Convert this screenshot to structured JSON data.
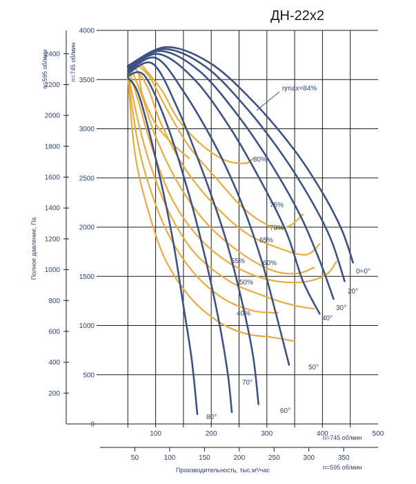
{
  "chart_data": {
    "type": "line",
    "title": "ДН-22х2",
    "left_labels": {
      "n595": "n=595 об/мин",
      "n745": "n=745 об/мин"
    },
    "ylabel": "Полное давление,  Па",
    "xlabel": "Производительность, тыс.м³/час",
    "xlabel_suffix_745": "n=745 об/мин",
    "xlabel_suffix_595": "n=595 об/мин",
    "ylim_745": [
      0,
      4000
    ],
    "xlim_745": [
      0,
      500
    ],
    "y_ticks_745": [
      "0",
      "500",
      "1000",
      "1500",
      "2000",
      "2500",
      "3000",
      "3500",
      "4000"
    ],
    "y_ticks_595": [
      "200",
      "400",
      "600",
      "800",
      "1000",
      "1200",
      "1400",
      "1600",
      "1800",
      "2000",
      "2200",
      "2400"
    ],
    "x_ticks_745": [
      "100",
      "200",
      "300",
      "400",
      "500"
    ],
    "x_ticks_595": [
      "50",
      "100",
      "150",
      "200",
      "250",
      "300",
      "350"
    ],
    "colors": {
      "pressure": "#3c5285",
      "efficiency": "#e8ac3c",
      "grid": "#1a1a1a",
      "text": "#2b3f74"
    },
    "pressure_curves": [
      {
        "name": "0=0°",
        "points": [
          [
            50,
            3640
          ],
          [
            120,
            3830
          ],
          [
            200,
            3660
          ],
          [
            280,
            3250
          ],
          [
            350,
            2780
          ],
          [
            400,
            2350
          ],
          [
            435,
            1970
          ],
          [
            455,
            1640
          ]
        ]
      },
      {
        "name": "20°",
        "points": [
          [
            50,
            3630
          ],
          [
            115,
            3810
          ],
          [
            190,
            3630
          ],
          [
            265,
            3200
          ],
          [
            330,
            2720
          ],
          [
            380,
            2270
          ],
          [
            415,
            1880
          ],
          [
            440,
            1450
          ]
        ]
      },
      {
        "name": "30°",
        "points": [
          [
            50,
            3620
          ],
          [
            110,
            3790
          ],
          [
            180,
            3580
          ],
          [
            250,
            3120
          ],
          [
            310,
            2620
          ],
          [
            360,
            2120
          ],
          [
            395,
            1660
          ],
          [
            420,
            1270
          ]
        ]
      },
      {
        "name": "40°",
        "points": [
          [
            50,
            3600
          ],
          [
            105,
            3760
          ],
          [
            170,
            3500
          ],
          [
            235,
            3000
          ],
          [
            290,
            2460
          ],
          [
            335,
            1950
          ],
          [
            365,
            1450
          ],
          [
            395,
            1120
          ]
        ]
      },
      {
        "name": "50°",
        "points": [
          [
            50,
            3580
          ],
          [
            100,
            3720
          ],
          [
            150,
            3380
          ],
          [
            210,
            2800
          ],
          [
            255,
            2240
          ],
          [
            290,
            1670
          ],
          [
            315,
            1150
          ],
          [
            340,
            600
          ]
        ]
      },
      {
        "name": "60°",
        "points": [
          [
            50,
            3560
          ],
          [
            95,
            3660
          ],
          [
            140,
            3200
          ],
          [
            185,
            2560
          ],
          [
            225,
            1900
          ],
          [
            255,
            1250
          ],
          [
            275,
            700
          ],
          [
            285,
            200
          ]
        ]
      },
      {
        "name": "70°",
        "points": [
          [
            50,
            3540
          ],
          [
            80,
            3540
          ],
          [
            120,
            3050
          ],
          [
            160,
            2330
          ],
          [
            190,
            1670
          ],
          [
            215,
            1010
          ],
          [
            230,
            500
          ],
          [
            237,
            120
          ]
        ]
      },
      {
        "name": "80°",
        "points": [
          [
            50,
            3520
          ],
          [
            70,
            3340
          ],
          [
            100,
            2700
          ],
          [
            130,
            1900
          ],
          [
            150,
            1200
          ],
          [
            165,
            650
          ],
          [
            175,
            100
          ]
        ]
      }
    ],
    "efficiency_curves": [
      {
        "name": "84%",
        "points": [
          [
            50,
            3520
          ],
          [
            68,
            3570
          ],
          [
            76,
            3350
          ],
          [
            100,
            3050
          ],
          [
            130,
            2850
          ],
          [
            160,
            2700
          ]
        ]
      },
      {
        "name": "80%",
        "points": [
          [
            70,
            3680
          ],
          [
            110,
            3400
          ],
          [
            140,
            3100
          ],
          [
            180,
            2850
          ],
          [
            225,
            2680
          ],
          [
            262,
            2650
          ],
          [
            275,
            2700
          ]
        ]
      },
      {
        "name": "75%",
        "points": [
          [
            65,
            3660
          ],
          [
            90,
            3520
          ],
          [
            120,
            3200
          ],
          [
            160,
            2820
          ],
          [
            210,
            2490
          ],
          [
            260,
            2180
          ],
          [
            310,
            2000
          ],
          [
            340,
            2010
          ],
          [
            365,
            2130
          ]
        ]
      },
      {
        "name": "70%",
        "points": [
          [
            60,
            3640
          ],
          [
            85,
            3430
          ],
          [
            110,
            3050
          ],
          [
            150,
            2620
          ],
          [
            200,
            2260
          ],
          [
            260,
            1950
          ],
          [
            320,
            1790
          ],
          [
            370,
            1720
          ],
          [
            395,
            1830
          ]
        ]
      },
      {
        "name": "65%",
        "points": [
          [
            55,
            3620
          ],
          [
            75,
            3340
          ],
          [
            100,
            2920
          ],
          [
            140,
            2450
          ],
          [
            190,
            2050
          ],
          [
            250,
            1750
          ],
          [
            310,
            1560
          ],
          [
            355,
            1530
          ],
          [
            385,
            1590
          ]
        ]
      },
      {
        "name": "60%",
        "points": [
          [
            52,
            3600
          ],
          [
            72,
            3220
          ],
          [
            95,
            2780
          ],
          [
            130,
            2280
          ],
          [
            180,
            1880
          ],
          [
            240,
            1610
          ],
          [
            300,
            1470
          ],
          [
            360,
            1440
          ],
          [
            405,
            1510
          ],
          [
            425,
            1650
          ]
        ]
      },
      {
        "name": "55%",
        "points": [
          [
            50,
            3580
          ],
          [
            68,
            3090
          ],
          [
            90,
            2640
          ],
          [
            125,
            2140
          ],
          [
            170,
            1740
          ],
          [
            230,
            1460
          ],
          [
            290,
            1310
          ],
          [
            345,
            1210
          ],
          [
            385,
            1170
          ]
        ]
      },
      {
        "name": "50%",
        "points": [
          [
            50,
            3560
          ],
          [
            65,
            2950
          ],
          [
            85,
            2480
          ],
          [
            120,
            1960
          ],
          [
            165,
            1560
          ],
          [
            220,
            1280
          ],
          [
            275,
            1150
          ],
          [
            320,
            1130
          ]
        ]
      },
      {
        "name": "40%",
        "points": [
          [
            50,
            3540
          ],
          [
            62,
            2780
          ],
          [
            82,
            2260
          ],
          [
            115,
            1700
          ],
          [
            160,
            1300
          ],
          [
            210,
            1050
          ],
          [
            260,
            920
          ],
          [
            310,
            880
          ],
          [
            350,
            840
          ]
        ]
      }
    ],
    "labels": {
      "eta": "ηmax=84%",
      "e80": "80%",
      "e75": "75%",
      "e70": "70%",
      "e65": "65%",
      "e60": "60%",
      "e55": "55%",
      "e50": "50%",
      "e40": "40%",
      "a0": "0=0°",
      "a20": "20°",
      "a30": "30°",
      "a40": "40°",
      "a50": "50°",
      "a60": "60°",
      "a70": "70°",
      "a80": "80°"
    }
  }
}
